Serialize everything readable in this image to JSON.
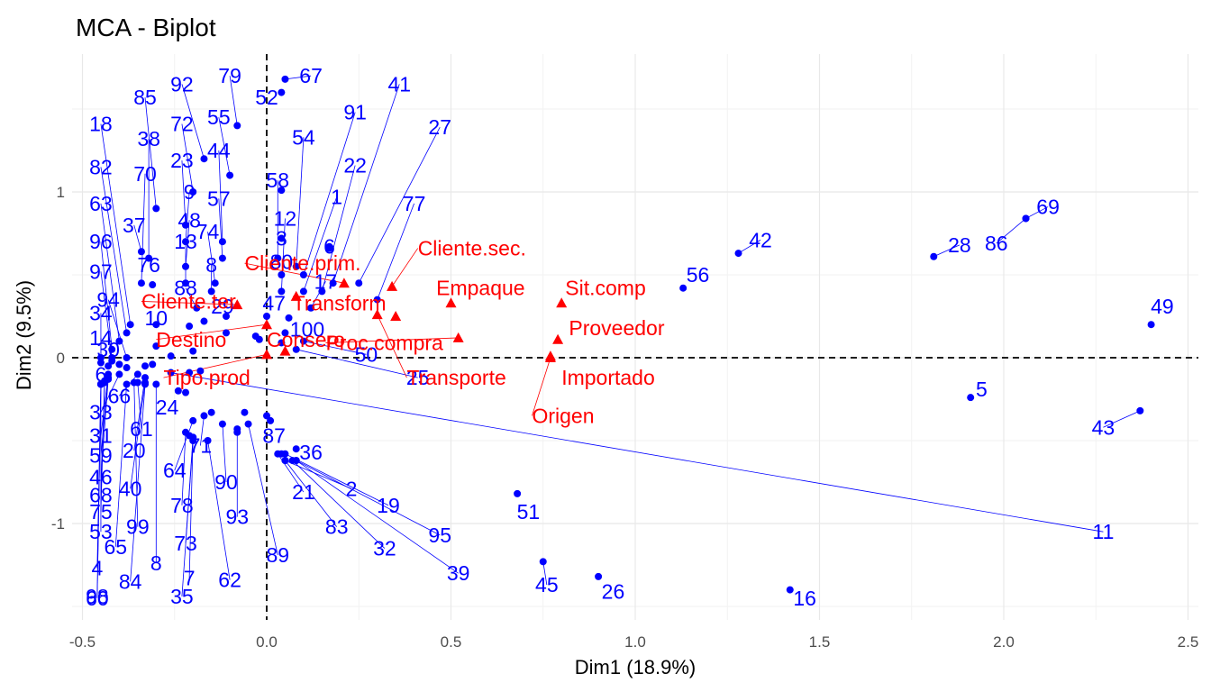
{
  "chart_data": {
    "type": "scatter",
    "title": "MCA - Biplot",
    "xlabel": "Dim1 (18.9%)",
    "ylabel": "Dim2 (9.5%)",
    "xlim": [
      -0.5,
      2.5
    ],
    "ylim": [
      -1.5,
      1.7
    ],
    "x_ticks": [
      -0.5,
      0.0,
      0.5,
      1.0,
      1.5,
      2.0,
      2.5
    ],
    "x_tick_labels": [
      "-0.5",
      "0.0",
      "0.5",
      "1.0",
      "1.5",
      "2.0",
      "2.5"
    ],
    "y_ticks": [
      -1,
      0,
      1
    ],
    "y_tick_labels": [
      "-1",
      "0",
      "1"
    ],
    "grid": true,
    "colors": {
      "individuals": "#0000ff",
      "variables": "#ff0000",
      "reference_lines": "#000000"
    },
    "individuals": [
      {
        "label": "67",
        "x": 0.05,
        "y": 1.68,
        "lx": 0.12,
        "ly": 1.7
      },
      {
        "label": "52",
        "x": 0.04,
        "y": 1.6,
        "lx": 0.0,
        "ly": 1.57
      },
      {
        "label": "79",
        "x": -0.08,
        "y": 1.4,
        "lx": -0.1,
        "ly": 1.7
      },
      {
        "label": "92",
        "x": -0.17,
        "y": 1.2,
        "lx": -0.23,
        "ly": 1.65
      },
      {
        "label": "85",
        "x": -0.3,
        "y": 0.9,
        "lx": -0.33,
        "ly": 1.57
      },
      {
        "label": "18",
        "x": -0.37,
        "y": 0.2,
        "lx": -0.45,
        "ly": 1.41
      },
      {
        "label": "38",
        "x": -0.32,
        "y": 0.6,
        "lx": -0.32,
        "ly": 1.32
      },
      {
        "label": "72",
        "x": -0.2,
        "y": 1.0,
        "lx": -0.23,
        "ly": 1.41
      },
      {
        "label": "55",
        "x": -0.1,
        "y": 1.1,
        "lx": -0.13,
        "ly": 1.45
      },
      {
        "label": "91",
        "x": 0.1,
        "y": 0.5,
        "lx": 0.24,
        "ly": 1.48
      },
      {
        "label": "41",
        "x": 0.18,
        "y": 0.45,
        "lx": 0.36,
        "ly": 1.65
      },
      {
        "label": "27",
        "x": 0.25,
        "y": 0.45,
        "lx": 0.47,
        "ly": 1.39
      },
      {
        "label": "54",
        "x": 0.08,
        "y": 0.55,
        "lx": 0.1,
        "ly": 1.33
      },
      {
        "label": "44",
        "x": -0.12,
        "y": 0.7,
        "lx": -0.13,
        "ly": 1.25
      },
      {
        "label": "23",
        "x": -0.22,
        "y": 0.8,
        "lx": -0.23,
        "ly": 1.19
      },
      {
        "label": "70",
        "x": -0.34,
        "y": 0.45,
        "lx": -0.33,
        "ly": 1.11
      },
      {
        "label": "82",
        "x": -0.38,
        "y": 0.15,
        "lx": -0.45,
        "ly": 1.15
      },
      {
        "label": "22",
        "x": 0.15,
        "y": 0.4,
        "lx": 0.24,
        "ly": 1.16
      },
      {
        "label": "58",
        "x": 0.03,
        "y": 0.6,
        "lx": 0.03,
        "ly": 1.07
      },
      {
        "label": "9",
        "x": -0.22,
        "y": 0.7,
        "lx": -0.21,
        "ly": 1.0
      },
      {
        "label": "57",
        "x": -0.12,
        "y": 0.6,
        "lx": -0.13,
        "ly": 0.96
      },
      {
        "label": "1",
        "x": 0.1,
        "y": 0.4,
        "lx": 0.19,
        "ly": 0.97
      },
      {
        "label": "63",
        "x": -0.4,
        "y": 0.1,
        "lx": -0.45,
        "ly": 0.93
      },
      {
        "label": "77",
        "x": 0.3,
        "y": 0.35,
        "lx": 0.4,
        "ly": 0.93
      },
      {
        "label": "48",
        "x": -0.22,
        "y": 0.55,
        "lx": -0.21,
        "ly": 0.83
      },
      {
        "label": "12",
        "x": 0.04,
        "y": 0.4,
        "lx": 0.05,
        "ly": 0.84
      },
      {
        "label": "37",
        "x": -0.34,
        "y": 0.64,
        "lx": -0.36,
        "ly": 0.8
      },
      {
        "label": "74",
        "x": -0.14,
        "y": 0.45,
        "lx": -0.16,
        "ly": 0.76
      },
      {
        "label": "96",
        "x": -0.42,
        "y": 0.05,
        "lx": -0.45,
        "ly": 0.7
      },
      {
        "label": "13",
        "x": -0.22,
        "y": 0.45,
        "lx": -0.22,
        "ly": 0.7
      },
      {
        "label": "3",
        "x": 0.04,
        "y": 0.72,
        "lx": 0.04,
        "ly": 0.72
      },
      {
        "label": "6",
        "x": 0.17,
        "y": 0.67,
        "lx": 0.17,
        "ly": 0.67
      },
      {
        "label": "76",
        "x": -0.31,
        "y": 0.44,
        "lx": -0.32,
        "ly": 0.56
      },
      {
        "label": "8",
        "x": -0.15,
        "y": 0.4,
        "lx": -0.15,
        "ly": 0.56
      },
      {
        "label": "80",
        "x": 0.04,
        "y": 0.5,
        "lx": 0.04,
        "ly": 0.58
      },
      {
        "label": "97",
        "x": -0.42,
        "y": 0.0,
        "lx": -0.45,
        "ly": 0.52
      },
      {
        "label": "88",
        "x": -0.19,
        "y": 0.3,
        "lx": -0.22,
        "ly": 0.42
      },
      {
        "label": "17",
        "x": 0.12,
        "y": 0.3,
        "lx": 0.16,
        "ly": 0.46
      },
      {
        "label": "94",
        "x": -0.38,
        "y": 0.0,
        "lx": -0.43,
        "ly": 0.35
      },
      {
        "label": "47",
        "x": 0.0,
        "y": 0.25,
        "lx": 0.02,
        "ly": 0.33
      },
      {
        "label": "29",
        "x": -0.11,
        "y": 0.25,
        "lx": -0.12,
        "ly": 0.31
      },
      {
        "label": "34",
        "x": -0.45,
        "y": 0.0,
        "lx": -0.45,
        "ly": 0.27
      },
      {
        "label": "10",
        "x": -0.3,
        "y": 0.2,
        "lx": -0.3,
        "ly": 0.24
      },
      {
        "label": "100",
        "x": 0.05,
        "y": 0.15,
        "lx": 0.11,
        "ly": 0.17
      },
      {
        "label": "14",
        "x": -0.45,
        "y": -0.03,
        "lx": -0.45,
        "ly": 0.12
      },
      {
        "label": "30",
        "x": -0.4,
        "y": -0.04,
        "lx": -0.43,
        "ly": 0.05
      },
      {
        "label": "50",
        "x": 0.1,
        "y": 0.1,
        "lx": 0.27,
        "ly": 0.02
      },
      {
        "label": "25",
        "x": 0.08,
        "y": 0.05,
        "lx": 0.41,
        "ly": -0.12
      },
      {
        "label": "6",
        "x": -0.43,
        "y": -0.05,
        "lx": -0.45,
        "ly": -0.1
      },
      {
        "label": "66",
        "x": -0.35,
        "y": -0.1,
        "lx": -0.4,
        "ly": -0.23
      },
      {
        "label": "24",
        "x": -0.24,
        "y": -0.2,
        "lx": -0.27,
        "ly": -0.3
      },
      {
        "label": "33",
        "x": -0.4,
        "y": -0.1,
        "lx": -0.45,
        "ly": -0.33
      },
      {
        "label": "61",
        "x": -0.35,
        "y": -0.15,
        "lx": -0.34,
        "ly": -0.43
      },
      {
        "label": "87",
        "x": 0.0,
        "y": -0.35,
        "lx": 0.02,
        "ly": -0.47
      },
      {
        "label": "31",
        "x": -0.43,
        "y": -0.1,
        "lx": -0.45,
        "ly": -0.47
      },
      {
        "label": "71",
        "x": -0.17,
        "y": -0.35,
        "lx": -0.18,
        "ly": -0.53
      },
      {
        "label": "36",
        "x": 0.08,
        "y": -0.55,
        "lx": 0.12,
        "ly": -0.57
      },
      {
        "label": "20",
        "x": -0.33,
        "y": -0.12,
        "lx": -0.36,
        "ly": -0.56
      },
      {
        "label": "59",
        "x": -0.43,
        "y": -0.12,
        "lx": -0.45,
        "ly": -0.59
      },
      {
        "label": "64",
        "x": -0.2,
        "y": -0.38,
        "lx": -0.25,
        "ly": -0.68
      },
      {
        "label": "46",
        "x": -0.43,
        "y": -0.13,
        "lx": -0.45,
        "ly": -0.72
      },
      {
        "label": "90",
        "x": -0.12,
        "y": -0.4,
        "lx": -0.11,
        "ly": -0.75
      },
      {
        "label": "2",
        "x": 0.05,
        "y": -0.62,
        "lx": 0.23,
        "ly": -0.79
      },
      {
        "label": "40",
        "x": -0.33,
        "y": -0.15,
        "lx": -0.37,
        "ly": -0.79
      },
      {
        "label": "21",
        "x": 0.03,
        "y": -0.58,
        "lx": 0.1,
        "ly": -0.81
      },
      {
        "label": "68",
        "x": -0.44,
        "y": -0.14,
        "lx": -0.45,
        "ly": -0.83
      },
      {
        "label": "19",
        "x": 0.05,
        "y": -0.58,
        "lx": 0.33,
        "ly": -0.89
      },
      {
        "label": "78",
        "x": -0.22,
        "y": -0.45,
        "lx": -0.23,
        "ly": -0.89
      },
      {
        "label": "93",
        "x": -0.08,
        "y": -0.45,
        "lx": -0.08,
        "ly": -0.96
      },
      {
        "label": "75",
        "x": -0.44,
        "y": -0.15,
        "lx": -0.45,
        "ly": -0.93
      },
      {
        "label": "83",
        "x": 0.05,
        "y": -0.62,
        "lx": 0.19,
        "ly": -1.02
      },
      {
        "label": "99",
        "x": -0.36,
        "y": -0.15,
        "lx": -0.35,
        "ly": -1.02
      },
      {
        "label": "53",
        "x": -0.45,
        "y": -0.16,
        "lx": -0.45,
        "ly": -1.05
      },
      {
        "label": "95",
        "x": 0.08,
        "y": -0.62,
        "lx": 0.47,
        "ly": -1.07
      },
      {
        "label": "73",
        "x": -0.2,
        "y": -0.48,
        "lx": -0.22,
        "ly": -1.12
      },
      {
        "label": "32",
        "x": 0.07,
        "y": -0.62,
        "lx": 0.32,
        "ly": -1.15
      },
      {
        "label": "65",
        "x": -0.38,
        "y": -0.16,
        "lx": -0.41,
        "ly": -1.14
      },
      {
        "label": "89",
        "x": -0.05,
        "y": -0.4,
        "lx": 0.03,
        "ly": -1.19
      },
      {
        "label": "8",
        "x": -0.3,
        "y": -0.16,
        "lx": -0.3,
        "ly": -1.24
      },
      {
        "label": "4",
        "x": -0.45,
        "y": -0.16,
        "lx": -0.46,
        "ly": -1.27
      },
      {
        "label": "39",
        "x": 0.08,
        "y": -0.62,
        "lx": 0.52,
        "ly": -1.3
      },
      {
        "label": "62",
        "x": -0.16,
        "y": -0.5,
        "lx": -0.1,
        "ly": -1.34
      },
      {
        "label": "84",
        "x": -0.33,
        "y": -0.16,
        "lx": -0.37,
        "ly": -1.35
      },
      {
        "label": "7",
        "x": -0.2,
        "y": -0.48,
        "lx": -0.21,
        "ly": -1.33
      },
      {
        "label": "35",
        "x": -0.2,
        "y": -0.5,
        "lx": -0.23,
        "ly": -1.44
      },
      {
        "label": "98",
        "x": -0.45,
        "y": -0.16,
        "lx": -0.46,
        "ly": -1.44
      },
      {
        "label": "60",
        "x": -0.45,
        "y": -0.16,
        "lx": -0.46,
        "ly": -1.45
      },
      {
        "label": "11",
        "x": -0.26,
        "y": -0.09,
        "lx": 2.27,
        "ly": -1.05
      },
      {
        "label": "69",
        "x": 2.06,
        "y": 0.84,
        "lx": 2.12,
        "ly": 0.91
      },
      {
        "label": "86",
        "x": 2.06,
        "y": 0.84,
        "lx": 1.98,
        "ly": 0.69
      },
      {
        "label": "28",
        "x": 1.81,
        "y": 0.61,
        "lx": 1.88,
        "ly": 0.68
      },
      {
        "label": "42",
        "x": 1.28,
        "y": 0.63,
        "lx": 1.34,
        "ly": 0.71
      },
      {
        "label": "56",
        "x": 1.13,
        "y": 0.42,
        "lx": 1.17,
        "ly": 0.5
      },
      {
        "label": "49",
        "x": 2.4,
        "y": 0.2,
        "lx": 2.43,
        "ly": 0.31
      },
      {
        "label": "5",
        "x": 1.91,
        "y": -0.24,
        "lx": 1.94,
        "ly": -0.19
      },
      {
        "label": "43",
        "x": 2.37,
        "y": -0.32,
        "lx": 2.27,
        "ly": -0.42
      },
      {
        "label": "51",
        "x": 0.68,
        "y": -0.82,
        "lx": 0.71,
        "ly": -0.93
      },
      {
        "label": "45",
        "x": 0.75,
        "y": -1.23,
        "lx": 0.76,
        "ly": -1.37
      },
      {
        "label": "26",
        "x": 0.9,
        "y": -1.32,
        "lx": 0.94,
        "ly": -1.41
      },
      {
        "label": "16",
        "x": 1.42,
        "y": -1.4,
        "lx": 1.46,
        "ly": -1.45
      }
    ],
    "extra_points": [
      [
        -0.3,
        0.07
      ],
      [
        -0.26,
        0.01
      ],
      [
        -0.21,
        -0.09
      ],
      [
        -0.31,
        -0.04
      ],
      [
        -0.38,
        -0.06
      ],
      [
        -0.42,
        -0.02
      ],
      [
        -0.33,
        -0.05
      ],
      [
        -0.2,
        0.04
      ],
      [
        -0.17,
        0.22
      ],
      [
        -0.21,
        0.19
      ],
      [
        -0.15,
        -0.33
      ],
      [
        -0.21,
        -0.47
      ],
      [
        -0.06,
        -0.33
      ],
      [
        -0.08,
        -0.43
      ],
      [
        0.01,
        -0.38
      ],
      [
        0.04,
        -0.58
      ],
      [
        -0.22,
        -0.21
      ],
      [
        -0.18,
        -0.08
      ],
      [
        -0.11,
        0.15
      ],
      [
        -0.03,
        0.13
      ],
      [
        -0.02,
        0.11
      ],
      [
        0.04,
        0.09
      ],
      [
        0.06,
        0.24
      ],
      [
        0.17,
        0.66
      ],
      [
        0.04,
        1.01
      ]
    ],
    "variables": [
      {
        "label": "Cliente.sec.",
        "x": 0.34,
        "y": 0.43,
        "lx": 0.41,
        "ly": 0.66
      },
      {
        "label": "Cliente.prim.",
        "x": 0.21,
        "y": 0.45,
        "lx": -0.06,
        "ly": 0.57
      },
      {
        "label": "Empaque",
        "x": 0.5,
        "y": 0.33,
        "lx": 0.46,
        "ly": 0.42
      },
      {
        "label": "Sit.comp",
        "x": 0.8,
        "y": 0.33,
        "lx": 0.81,
        "ly": 0.42
      },
      {
        "label": "Cliente.ter.",
        "x": -0.08,
        "y": 0.32,
        "lx": -0.34,
        "ly": 0.34
      },
      {
        "label": "Transform",
        "x": 0.08,
        "y": 0.37,
        "lx": 0.07,
        "ly": 0.33
      },
      {
        "label": "Proveedor",
        "x": 0.79,
        "y": 0.11,
        "lx": 0.82,
        "ly": 0.18
      },
      {
        "label": "Destino",
        "x": 0.0,
        "y": 0.2,
        "lx": -0.3,
        "ly": 0.11
      },
      {
        "label": "Consero",
        "x": 0.05,
        "y": 0.04,
        "lx": 0.0,
        "ly": 0.11
      },
      {
        "label": "Proc.compra",
        "x": 0.52,
        "y": 0.12,
        "lx": 0.16,
        "ly": 0.09
      },
      {
        "label": "Importado",
        "x": 0.77,
        "y": 0.01,
        "lx": 0.8,
        "ly": -0.12
      },
      {
        "label": "Transporte",
        "x": 0.3,
        "y": 0.26,
        "lx": 0.38,
        "ly": -0.12
      },
      {
        "label": "Tipo.prod",
        "x": 0.0,
        "y": 0.02,
        "lx": -0.28,
        "ly": -0.12
      },
      {
        "label": "Origen",
        "x": 0.77,
        "y": 0.0,
        "lx": 0.72,
        "ly": -0.35
      },
      {
        "label": "",
        "x": 0.35,
        "y": 0.25,
        "lx": 0.35,
        "ly": 0.25
      }
    ]
  }
}
